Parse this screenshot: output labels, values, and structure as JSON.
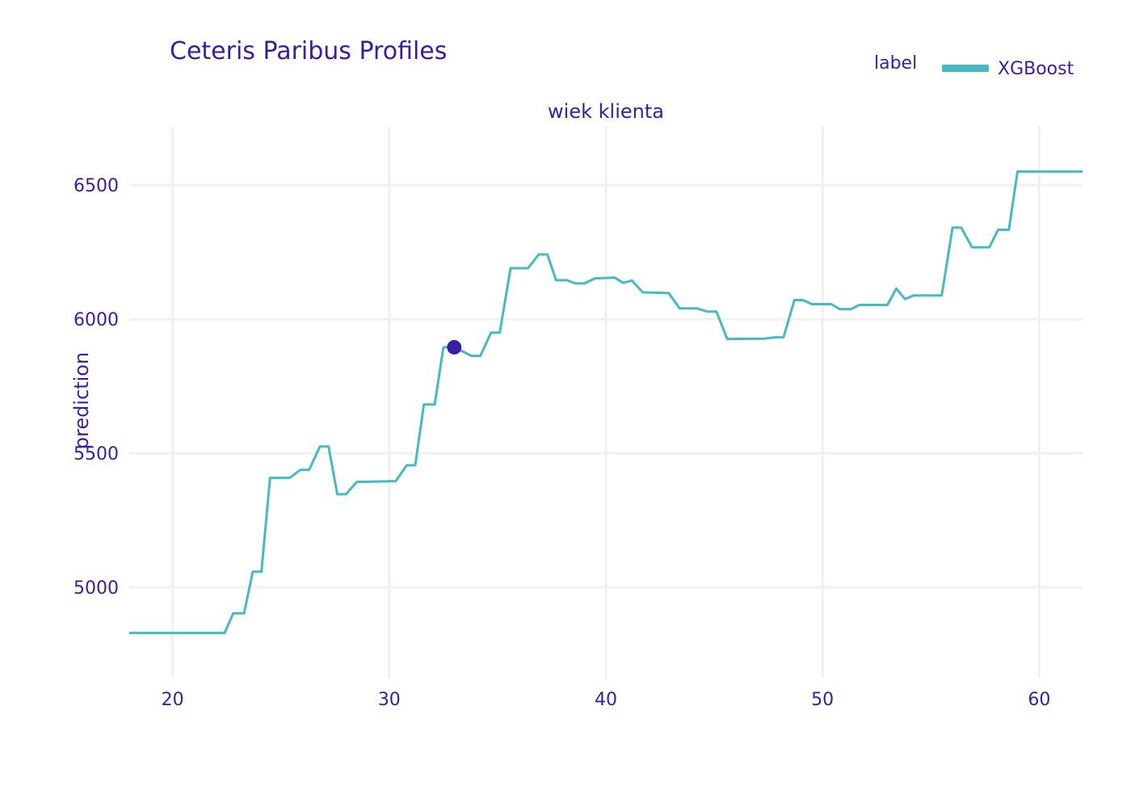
{
  "title": "Ceteris Paribus Profiles",
  "legend": {
    "title": "label",
    "label": "XGBoost",
    "color": "#46bac2"
  },
  "chart_data": {
    "type": "line",
    "title": "Ceteris Paribus Profiles",
    "subtitle": "wiek klienta",
    "xlabel": "",
    "ylabel": "prediction",
    "xlim": [
      18,
      62
    ],
    "ylim": [
      4660,
      6720
    ],
    "xticks": [
      20,
      30,
      40,
      50,
      60
    ],
    "yticks": [
      5000,
      5500,
      6000,
      6500
    ],
    "grid": true,
    "legend_position": "top-right",
    "series": [
      {
        "name": "XGBoost",
        "color": "#46bac2",
        "x": [
          18,
          22.4,
          22.8,
          23.3,
          23.7,
          24.1,
          24.5,
          25.4,
          25.9,
          26.3,
          26.8,
          27.2,
          27.6,
          28.0,
          28.5,
          30.3,
          30.8,
          31.2,
          31.6,
          32.1,
          32.5,
          33.0,
          33.8,
          34.2,
          34.7,
          35.1,
          35.6,
          36.4,
          36.9,
          37.3,
          37.7,
          38.2,
          38.6,
          39.0,
          39.5,
          40.4,
          40.8,
          41.2,
          41.7,
          42.9,
          43.4,
          44.2,
          44.7,
          45.1,
          45.6,
          47.3,
          47.8,
          48.2,
          48.7,
          49.1,
          49.5,
          50.4,
          50.8,
          51.3,
          51.7,
          52.1,
          53.0,
          53.4,
          53.8,
          54.2,
          54.7,
          55.5,
          56.0,
          56.4,
          56.9,
          57.7,
          58.1,
          58.6,
          59.0,
          62.0
        ],
        "values": [
          4830,
          4830,
          4903,
          4903,
          5058,
          5058,
          5408,
          5408,
          5438,
          5438,
          5525,
          5525,
          5347,
          5347,
          5393,
          5396,
          5455,
          5455,
          5682,
          5682,
          5895,
          5895,
          5863,
          5863,
          5950,
          5950,
          6190,
          6190,
          6241,
          6241,
          6145,
          6145,
          6133,
          6133,
          6152,
          6155,
          6135,
          6144,
          6100,
          6097,
          6040,
          6040,
          6028,
          6028,
          5926,
          5927,
          5932,
          5932,
          6071,
          6071,
          6056,
          6056,
          6037,
          6037,
          6053,
          6053,
          6053,
          6114,
          6075,
          6088,
          6088,
          6088,
          6341,
          6341,
          6268,
          6268,
          6333,
          6333,
          6550,
          6550
        ]
      }
    ],
    "observation": {
      "x": 33.0,
      "y": 5895,
      "color": "#371ea3"
    }
  }
}
